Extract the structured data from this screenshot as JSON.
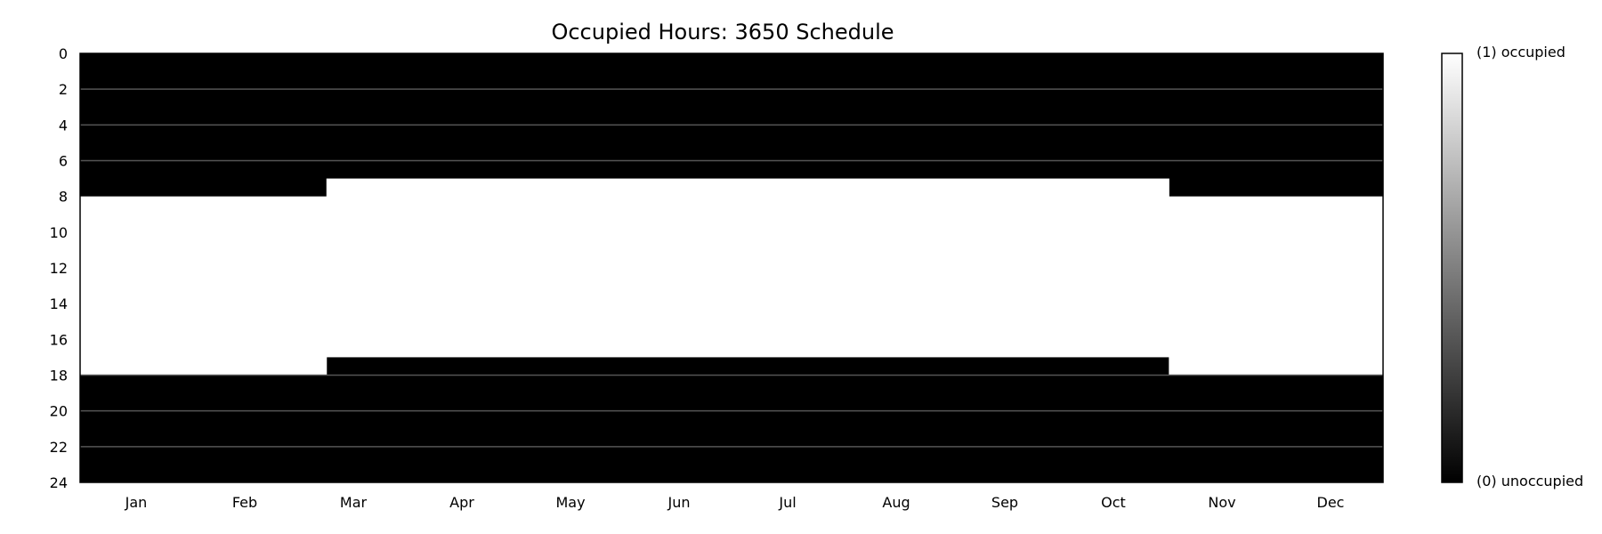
{
  "chart_data": {
    "type": "heatmap",
    "title": "Occupied Hours: 3650 Schedule",
    "xlabel": "",
    "ylabel": "",
    "x_axis": {
      "unit": "day_of_year",
      "range": [
        0,
        365
      ],
      "month_labels": [
        "Jan",
        "Feb",
        "Mar",
        "Apr",
        "May",
        "Jun",
        "Jul",
        "Aug",
        "Sep",
        "Oct",
        "Nov",
        "Dec"
      ]
    },
    "y_axis": {
      "unit": "hour_of_day",
      "range": [
        0,
        24
      ],
      "inverted": true,
      "ticks": [
        0,
        2,
        4,
        6,
        8,
        10,
        12,
        14,
        16,
        18,
        20,
        22,
        24
      ]
    },
    "grid_hours": [
      2,
      4,
      6,
      18,
      20,
      22
    ],
    "colormap": "gray",
    "value_range": [
      0,
      1
    ],
    "colorbar": {
      "top_label": "(1) occupied",
      "bottom_label": "(0) unoccupied"
    },
    "occupied_segments": [
      {
        "day_start": 0,
        "day_end": 69,
        "hour_start": 8,
        "hour_end": 18
      },
      {
        "day_start": 69,
        "day_end": 305,
        "hour_start": 7,
        "hour_end": 17
      },
      {
        "day_start": 305,
        "day_end": 365,
        "hour_start": 8,
        "hour_end": 18
      }
    ],
    "colors": {
      "occupied": "#ffffff",
      "unoccupied": "#000000",
      "gridline": "#555555"
    }
  }
}
